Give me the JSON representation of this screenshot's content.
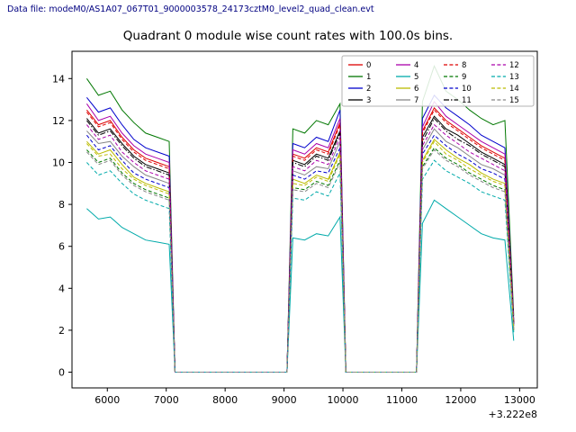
{
  "header": {
    "datafile_label": "Data file: modeM0/AS1A07_067T01_9000003578_24173cztM0_level2_quad_clean.evt"
  },
  "chart_data": {
    "type": "line",
    "title": "Quadrant 0 module wise count rates with 100.0s bins.",
    "xlabel": "",
    "ylabel": "",
    "x_offset_label": "+3.222e8",
    "xlim": [
      5400,
      13300
    ],
    "ylim": [
      -0.75,
      15.3
    ],
    "x_ticks": [
      6000,
      7000,
      8000,
      9000,
      10000,
      11000,
      12000,
      13000
    ],
    "y_ticks": [
      0,
      2,
      4,
      6,
      8,
      10,
      12,
      14
    ],
    "legend_position": "upper right",
    "legend_columns": 4,
    "x": [
      5650,
      5850,
      6050,
      6250,
      6450,
      6650,
      6850,
      7050,
      7150,
      9050,
      9150,
      9350,
      9550,
      9750,
      9950,
      10050,
      11250,
      11350,
      11550,
      11750,
      11950,
      12150,
      12350,
      12550,
      12750,
      12900
    ],
    "series": [
      {
        "name": "0",
        "color": "#dd0000",
        "dash": "",
        "values": [
          12.5,
          11.8,
          12.0,
          11.2,
          10.6,
          10.2,
          10.0,
          9.8,
          0,
          0,
          10.4,
          10.2,
          10.7,
          10.5,
          11.9,
          0,
          0,
          11.5,
          12.6,
          12.0,
          11.6,
          11.2,
          10.8,
          10.5,
          10.2,
          2.4
        ]
      },
      {
        "name": "1",
        "color": "#007700",
        "dash": "",
        "values": [
          14.0,
          13.2,
          13.4,
          12.5,
          11.9,
          11.4,
          11.2,
          11.0,
          0,
          0,
          11.6,
          11.4,
          12.0,
          11.8,
          12.8,
          0,
          0,
          12.9,
          14.6,
          13.4,
          13.0,
          12.5,
          12.1,
          11.8,
          12.0,
          2.7
        ]
      },
      {
        "name": "2",
        "color": "#0000cc",
        "dash": "",
        "values": [
          13.1,
          12.4,
          12.6,
          11.8,
          11.1,
          10.7,
          10.5,
          10.3,
          0,
          0,
          10.9,
          10.7,
          11.2,
          11.0,
          12.5,
          0,
          0,
          12.1,
          13.2,
          12.6,
          12.2,
          11.8,
          11.3,
          11.0,
          10.7,
          2.5
        ]
      },
      {
        "name": "3",
        "color": "#000000",
        "dash": "",
        "values": [
          12.1,
          11.4,
          11.6,
          10.9,
          10.3,
          9.9,
          9.7,
          9.5,
          0,
          0,
          10.1,
          9.9,
          10.4,
          10.2,
          11.5,
          0,
          0,
          11.2,
          12.2,
          11.6,
          11.3,
          10.9,
          10.5,
          10.2,
          9.9,
          2.3
        ]
      },
      {
        "name": "4",
        "color": "#aa00aa",
        "dash": "",
        "values": [
          12.8,
          12.0,
          12.2,
          11.4,
          10.8,
          10.4,
          10.2,
          10.0,
          0,
          0,
          10.6,
          10.4,
          10.9,
          10.7,
          12.1,
          0,
          0,
          11.7,
          12.9,
          12.2,
          11.8,
          11.4,
          11.0,
          10.7,
          10.4,
          2.4
        ]
      },
      {
        "name": "5",
        "color": "#00aaaa",
        "dash": "",
        "values": [
          7.8,
          7.3,
          7.4,
          6.9,
          6.6,
          6.3,
          6.2,
          6.1,
          0,
          0,
          6.4,
          6.3,
          6.6,
          6.5,
          7.4,
          0,
          0,
          7.1,
          8.2,
          7.8,
          7.4,
          7.0,
          6.6,
          6.4,
          6.3,
          1.5
        ]
      },
      {
        "name": "6",
        "color": "#bbbb00",
        "dash": "",
        "values": [
          11.0,
          10.4,
          10.6,
          9.9,
          9.3,
          9.0,
          8.8,
          8.6,
          0,
          0,
          9.2,
          9.0,
          9.4,
          9.2,
          10.5,
          0,
          0,
          10.1,
          11.1,
          10.6,
          10.2,
          9.9,
          9.5,
          9.2,
          9.0,
          2.1
        ]
      },
      {
        "name": "7",
        "color": "#888888",
        "dash": "",
        "values": [
          11.5,
          10.9,
          11.0,
          10.3,
          9.8,
          9.4,
          9.2,
          9.0,
          0,
          0,
          9.6,
          9.4,
          9.8,
          9.7,
          11.0,
          0,
          0,
          10.6,
          11.6,
          11.0,
          10.7,
          10.3,
          9.9,
          9.7,
          9.4,
          2.2
        ]
      },
      {
        "name": "8",
        "color": "#dd0000",
        "dash": "4,2.4",
        "values": [
          12.4,
          11.7,
          11.9,
          11.1,
          10.5,
          10.1,
          9.9,
          9.7,
          0,
          0,
          10.3,
          10.1,
          10.6,
          10.4,
          11.8,
          0,
          0,
          11.4,
          12.5,
          11.9,
          11.5,
          11.1,
          10.7,
          10.4,
          10.1,
          2.4
        ]
      },
      {
        "name": "9",
        "color": "#007700",
        "dash": "4,2.4",
        "values": [
          10.6,
          10.0,
          10.2,
          9.5,
          9.0,
          8.7,
          8.5,
          8.3,
          0,
          0,
          8.8,
          8.7,
          9.1,
          8.9,
          10.1,
          0,
          0,
          9.8,
          10.7,
          10.2,
          9.9,
          9.5,
          9.2,
          8.9,
          8.7,
          2.0
        ]
      },
      {
        "name": "10",
        "color": "#0000cc",
        "dash": "4,2.4",
        "values": [
          11.3,
          10.6,
          10.8,
          10.1,
          9.5,
          9.2,
          9.0,
          8.8,
          0,
          0,
          9.4,
          9.2,
          9.6,
          9.5,
          10.7,
          0,
          0,
          10.4,
          11.3,
          10.8,
          10.4,
          10.1,
          9.7,
          9.5,
          9.2,
          2.2
        ]
      },
      {
        "name": "11",
        "color": "#000000",
        "dash": "6,2,1.5,2",
        "values": [
          12.0,
          11.3,
          11.5,
          10.8,
          10.2,
          9.8,
          9.6,
          9.4,
          0,
          0,
          10.0,
          9.8,
          10.3,
          10.1,
          11.4,
          0,
          0,
          11.0,
          12.1,
          11.5,
          11.1,
          10.8,
          10.4,
          10.1,
          9.8,
          2.3
        ]
      },
      {
        "name": "12",
        "color": "#aa00aa",
        "dash": "4,2.4",
        "values": [
          11.8,
          11.1,
          11.3,
          10.5,
          10.0,
          9.6,
          9.4,
          9.2,
          0,
          0,
          9.8,
          9.6,
          10.1,
          9.9,
          11.2,
          0,
          0,
          10.8,
          11.8,
          11.3,
          10.9,
          10.5,
          10.2,
          9.9,
          9.6,
          2.3
        ]
      },
      {
        "name": "13",
        "color": "#00aaaa",
        "dash": "4,2.4",
        "values": [
          10.0,
          9.4,
          9.6,
          9.0,
          8.5,
          8.2,
          8.0,
          7.8,
          0,
          0,
          8.3,
          8.2,
          8.6,
          8.4,
          9.5,
          0,
          0,
          9.2,
          10.1,
          9.6,
          9.3,
          9.0,
          8.6,
          8.4,
          8.2,
          1.9
        ]
      },
      {
        "name": "14",
        "color": "#bbbb00",
        "dash": "4,2.4",
        "values": [
          10.9,
          10.3,
          10.4,
          9.7,
          9.2,
          8.9,
          8.7,
          8.5,
          0,
          0,
          9.0,
          8.9,
          9.3,
          9.1,
          10.4,
          0,
          0,
          10.0,
          11.0,
          10.4,
          10.1,
          9.7,
          9.4,
          9.1,
          8.9,
          2.1
        ]
      },
      {
        "name": "15",
        "color": "#888888",
        "dash": "4,2.4",
        "values": [
          10.5,
          9.9,
          10.1,
          9.4,
          8.9,
          8.6,
          8.4,
          8.2,
          0,
          0,
          8.7,
          8.6,
          9.0,
          8.8,
          10.0,
          0,
          0,
          9.7,
          10.6,
          10.1,
          9.8,
          9.4,
          9.1,
          8.8,
          8.6,
          2.0
        ]
      }
    ]
  }
}
